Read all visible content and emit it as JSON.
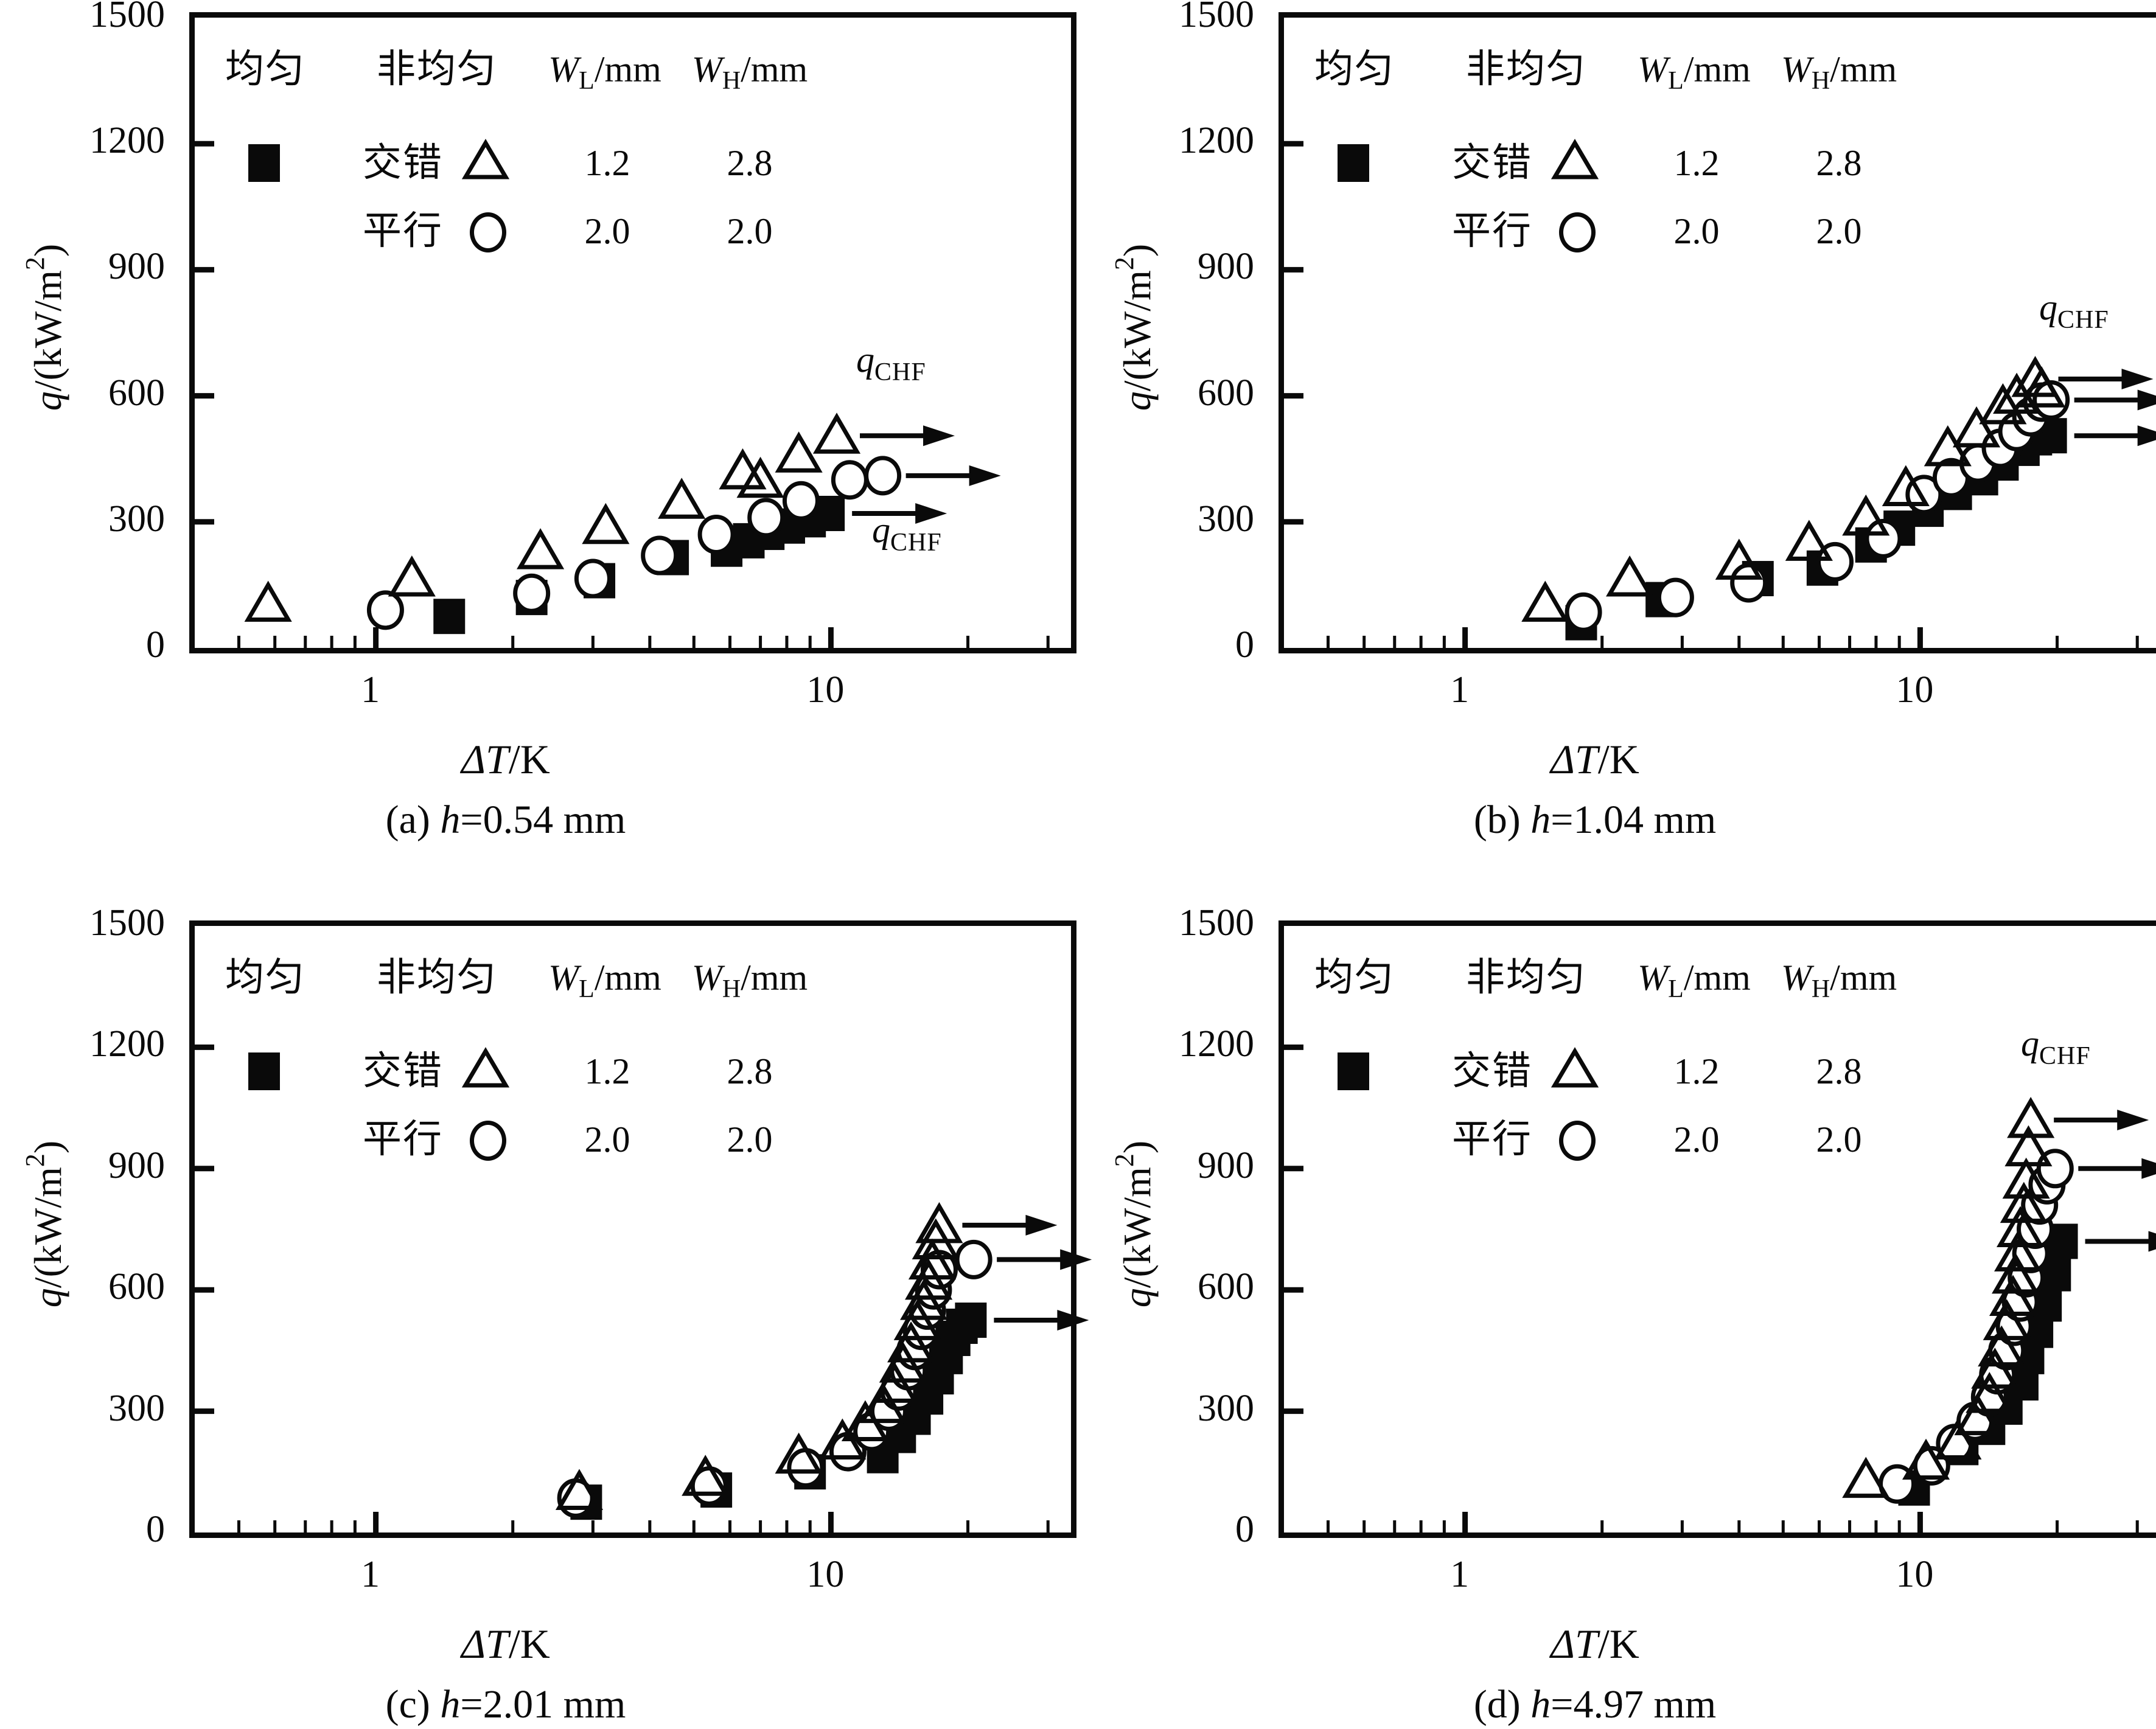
{
  "figure": {
    "ylabel": {
      "var": "q",
      "unit": "/(kW/m",
      "sup": "2",
      "close": ")"
    },
    "xlabel": {
      "var": "ΔT",
      "unit": "/K"
    },
    "qchf": {
      "var": "q",
      "sub": "CHF"
    },
    "y_ticks": [
      {
        "value": 0,
        "label": "0"
      },
      {
        "value": 300,
        "label": "300"
      },
      {
        "value": 600,
        "label": "600"
      },
      {
        "value": 900,
        "label": "900"
      },
      {
        "value": 1200,
        "label": "1200"
      },
      {
        "value": 1500,
        "label": "1500"
      }
    ],
    "x_major_ticks": [
      {
        "value": 1,
        "label": "1"
      },
      {
        "value": 10,
        "label": "10"
      }
    ],
    "x_minor_ticks": [
      0.5,
      0.6,
      0.7,
      0.8,
      0.9,
      2,
      3,
      4,
      5,
      6,
      7,
      8,
      9,
      20,
      30
    ],
    "ink_color": "#0a0a0a"
  },
  "legend": {
    "uniform_label": "均匀",
    "nonuniform_label": "非均匀",
    "staggered_label": "交错",
    "parallel_label": "平行",
    "wl": {
      "var": "W",
      "sub": "L",
      "unit": "/mm"
    },
    "wh": {
      "var": "W",
      "sub": "H",
      "unit": "/mm"
    },
    "staggered_wl": "1.2",
    "staggered_wh": "2.8",
    "parallel_wl": "2.0",
    "parallel_wh": "2.0"
  },
  "panels": [
    {
      "id": "a",
      "caption": {
        "pre": "(a) ",
        "var": "h",
        "post": "=0.54 mm"
      }
    },
    {
      "id": "b",
      "caption": {
        "pre": "(b) ",
        "var": "h",
        "post": "=1.04 mm"
      }
    },
    {
      "id": "c",
      "caption": {
        "pre": "(c) ",
        "var": "h",
        "post": "=2.01 mm"
      }
    },
    {
      "id": "d",
      "caption": {
        "pre": "(d) ",
        "var": "h",
        "post": "=4.97 mm"
      }
    }
  ],
  "chart_data": [
    {
      "panel": "a",
      "type": "scatter",
      "title": "(a) h=0.54 mm",
      "xlabel": "ΔT/K",
      "ylabel": "q/(kW/m2)",
      "xscale": "log",
      "xlim": [
        0.4,
        33.7
      ],
      "ylim": [
        0,
        1500
      ],
      "grid": false,
      "series": [
        {
          "name": "均匀 (uniform)",
          "marker": "square-filled",
          "chf_arrow": true,
          "points": [
            [
              1.45,
              75
            ],
            [
              2.2,
              120
            ],
            [
              3.1,
              160
            ],
            [
              4.5,
              215
            ],
            [
              5.9,
              235
            ],
            [
              6.6,
              255
            ],
            [
              7.3,
              275
            ],
            [
              8.1,
              290
            ],
            [
              9.0,
              305
            ],
            [
              9.9,
              320
            ]
          ]
        },
        {
          "name": "非均匀 平行 (parallel, WL=2.0, WH=2.0)",
          "marker": "circle-open",
          "chf_arrow": true,
          "points": [
            [
              1.05,
              90
            ],
            [
              2.2,
              130
            ],
            [
              3.0,
              165
            ],
            [
              4.2,
              220
            ],
            [
              5.6,
              270
            ],
            [
              7.2,
              310
            ],
            [
              8.6,
              350
            ],
            [
              11.0,
              400
            ],
            [
              13.0,
              410
            ]
          ]
        },
        {
          "name": "非均匀 交错 (staggered, WL=1.2, WH=2.8)",
          "marker": "triangle-open",
          "chf_arrow": true,
          "points": [
            [
              0.58,
              105
            ],
            [
              1.2,
              165
            ],
            [
              2.3,
              230
            ],
            [
              3.2,
              290
            ],
            [
              4.7,
              350
            ],
            [
              6.4,
              420
            ],
            [
              7.0,
              400
            ],
            [
              8.5,
              460
            ],
            [
              10.3,
              505
            ]
          ]
        }
      ]
    },
    {
      "panel": "b",
      "type": "scatter",
      "title": "(b) h=1.04 mm",
      "xlabel": "ΔT/K",
      "ylabel": "q/(kW/m2)",
      "xscale": "log",
      "xlim": [
        0.4,
        33.7
      ],
      "ylim": [
        0,
        1500
      ],
      "grid": false,
      "series": [
        {
          "name": "均匀 (uniform)",
          "marker": "square-filled",
          "chf_arrow": true,
          "points": [
            [
              1.8,
              60
            ],
            [
              2.7,
              115
            ],
            [
              4.4,
              165
            ],
            [
              6.1,
              190
            ],
            [
              7.8,
              245
            ],
            [
              9.0,
              285
            ],
            [
              10.4,
              330
            ],
            [
              12.0,
              370
            ],
            [
              13.7,
              405
            ],
            [
              15.2,
              440
            ],
            [
              16.9,
              475
            ],
            [
              18.0,
              500
            ],
            [
              19.4,
              505
            ]
          ]
        },
        {
          "name": "非均匀 平行 (parallel, WL=2.0, WH=2.0)",
          "marker": "circle-open",
          "chf_arrow": true,
          "points": [
            [
              1.82,
              85
            ],
            [
              2.9,
              120
            ],
            [
              4.2,
              155
            ],
            [
              6.5,
              205
            ],
            [
              8.3,
              260
            ],
            [
              10.2,
              365
            ],
            [
              11.7,
              405
            ],
            [
              13.4,
              440
            ],
            [
              15.0,
              475
            ],
            [
              16.3,
              515
            ],
            [
              17.5,
              550
            ],
            [
              18.5,
              585
            ],
            [
              19.4,
              590
            ]
          ]
        },
        {
          "name": "非均匀 交错 (staggered, WL=1.2, WH=2.8)",
          "marker": "triangle-open",
          "chf_arrow": true,
          "points": [
            [
              1.5,
              105
            ],
            [
              2.3,
              165
            ],
            [
              4.0,
              205
            ],
            [
              5.7,
              250
            ],
            [
              7.6,
              310
            ],
            [
              9.3,
              380
            ],
            [
              11.5,
              475
            ],
            [
              13.3,
              520
            ],
            [
              15.2,
              575
            ],
            [
              16.3,
              600
            ],
            [
              18.5,
              615
            ],
            [
              17.9,
              640
            ]
          ]
        }
      ]
    },
    {
      "panel": "c",
      "type": "scatter",
      "title": "(c) h=2.01 mm",
      "xlabel": "ΔT/K",
      "ylabel": "q/(kW/m2)",
      "xscale": "log",
      "xlim": [
        0.4,
        33.7
      ],
      "ylim": [
        0,
        1500
      ],
      "grid": false,
      "series": [
        {
          "name": "均匀 (uniform)",
          "marker": "square-filled",
          "chf_arrow": true,
          "points": [
            [
              2.9,
              75
            ],
            [
              5.6,
              105
            ],
            [
              9.0,
              150
            ],
            [
              13.0,
              190
            ],
            [
              14.2,
              240
            ],
            [
              15.3,
              285
            ],
            [
              16.3,
              335
            ],
            [
              17.2,
              385
            ],
            [
              18.0,
              435
            ],
            [
              18.7,
              480
            ],
            [
              19.4,
              510
            ],
            [
              20.3,
              525
            ]
          ]
        },
        {
          "name": "非均匀 平行 (parallel, WL=2.0, WH=2.0)",
          "marker": "circle-open",
          "chf_arrow": true,
          "points": [
            [
              2.75,
              85
            ],
            [
              5.4,
              115
            ],
            [
              8.8,
              160
            ],
            [
              10.9,
              200
            ],
            [
              12.3,
              250
            ],
            [
              13.4,
              300
            ],
            [
              14.1,
              350
            ],
            [
              14.8,
              400
            ],
            [
              15.3,
              450
            ],
            [
              15.8,
              500
            ],
            [
              16.3,
              550
            ],
            [
              16.8,
              600
            ],
            [
              17.3,
              650
            ],
            [
              20.6,
              675
            ]
          ]
        },
        {
          "name": "非均匀 交错 (staggered, WL=1.2, WH=2.8)",
          "marker": "triangle-open",
          "chf_arrow": true,
          "points": [
            [
              2.8,
              100
            ],
            [
              5.3,
              135
            ],
            [
              8.5,
              190
            ],
            [
              10.6,
              225
            ],
            [
              11.9,
              270
            ],
            [
              13.0,
              315
            ],
            [
              13.8,
              365
            ],
            [
              14.4,
              415
            ],
            [
              15.0,
              465
            ],
            [
              15.5,
              520
            ],
            [
              16.0,
              570
            ],
            [
              16.4,
              620
            ],
            [
              16.7,
              670
            ],
            [
              17.0,
              720
            ],
            [
              17.3,
              760
            ]
          ]
        }
      ]
    },
    {
      "panel": "d",
      "type": "scatter",
      "title": "(d) h=4.97 mm",
      "xlabel": "ΔT/K",
      "ylabel": "q/(kW/m2)",
      "xscale": "log",
      "xlim": [
        0.4,
        33.7
      ],
      "ylim": [
        0,
        1500
      ],
      "grid": false,
      "series": [
        {
          "name": "均匀 (uniform)",
          "marker": "square-filled",
          "chf_arrow": true,
          "points": [
            [
              9.7,
              110
            ],
            [
              12.4,
              210
            ],
            [
              14.2,
              260
            ],
            [
              15.5,
              310
            ],
            [
              16.8,
              370
            ],
            [
              17.3,
              435
            ],
            [
              18.1,
              500
            ],
            [
              18.9,
              565
            ],
            [
              19.8,
              640
            ],
            [
              20.5,
              720
            ]
          ]
        },
        {
          "name": "非均匀 平行 (parallel, WL=2.0, WH=2.0)",
          "marker": "circle-open",
          "chf_arrow": true,
          "points": [
            [
              8.9,
              120
            ],
            [
              10.6,
              165
            ],
            [
              11.9,
              220
            ],
            [
              13.2,
              275
            ],
            [
              14.2,
              335
            ],
            [
              14.8,
              390
            ],
            [
              15.5,
              450
            ],
            [
              16.1,
              510
            ],
            [
              16.6,
              570
            ],
            [
              17.1,
              630
            ],
            [
              17.5,
              690
            ],
            [
              17.9,
              750
            ],
            [
              18.3,
              810
            ],
            [
              19.0,
              860
            ],
            [
              19.8,
              900
            ]
          ]
        },
        {
          "name": "非均匀 交错 (staggered, WL=1.2, WH=2.8)",
          "marker": "triangle-open",
          "chf_arrow": true,
          "points": [
            [
              7.6,
              130
            ],
            [
              10.3,
              175
            ],
            [
              12.1,
              225
            ],
            [
              13.4,
              285
            ],
            [
              14.2,
              340
            ],
            [
              14.6,
              400
            ],
            [
              15.1,
              455
            ],
            [
              15.5,
              520
            ],
            [
              16.0,
              580
            ],
            [
              16.2,
              635
            ],
            [
              16.4,
              690
            ],
            [
              16.6,
              750
            ],
            [
              16.9,
              810
            ],
            [
              17.1,
              870
            ],
            [
              17.3,
              950
            ],
            [
              17.5,
              1020
            ]
          ]
        }
      ]
    }
  ]
}
